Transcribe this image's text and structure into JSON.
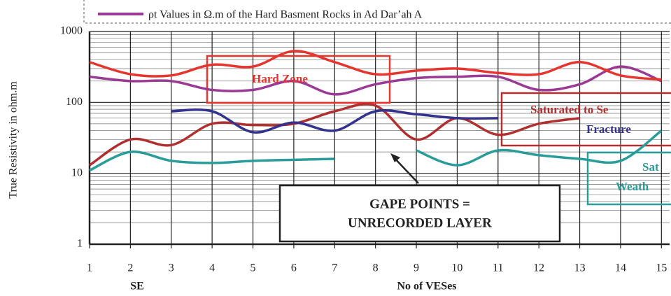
{
  "chart_data": {
    "type": "line",
    "log_y": true,
    "grid": true,
    "minor_grid": true,
    "y_label": "True Resistivity in ohm.m",
    "x_label": "No of VESes",
    "x_note": "SE",
    "x": [
      1,
      2,
      3,
      4,
      5,
      6,
      7,
      8,
      9,
      10,
      11,
      12,
      13,
      14,
      15
    ],
    "xlim": [
      1,
      15.2
    ],
    "xticks": [
      1,
      2,
      3,
      4,
      5,
      6,
      7,
      8,
      9,
      10,
      11,
      12,
      13,
      14,
      15
    ],
    "ylim": [
      1,
      1000
    ],
    "yticks": [
      1,
      10,
      100,
      1000
    ],
    "series": [
      {
        "name": "ρt Values in Ω.m of the Hard Basment Rocks in Ad Dar’ah A",
        "color": "#9b3a94",
        "values": [
          230,
          200,
          200,
          150,
          150,
          200,
          130,
          180,
          220,
          230,
          230,
          150,
          180,
          320,
          200
        ]
      },
      {
        "color": "#e5352e",
        "values": [
          370,
          250,
          240,
          340,
          320,
          530,
          370,
          250,
          280,
          300,
          260,
          250,
          370,
          240,
          210
        ]
      },
      {
        "color": "#b03030",
        "values": [
          13,
          30,
          25,
          50,
          48,
          50,
          75,
          90,
          30,
          60,
          35,
          50,
          60,
          null,
          null
        ]
      },
      {
        "color": "#33338f",
        "values": [
          null,
          null,
          75,
          75,
          38,
          52,
          40,
          75,
          68,
          60,
          60,
          null,
          null,
          null,
          null
        ]
      },
      {
        "color": "#2a9d9a",
        "values": [
          11,
          20,
          15,
          14,
          15,
          15.5,
          16,
          null,
          21,
          13,
          21,
          18,
          16,
          15,
          40
        ]
      }
    ],
    "annotations": [
      {
        "text": "Hard Zone",
        "color": "#e5352e"
      },
      {
        "text": "Saturated to Se",
        "color": "#b03030"
      },
      {
        "text": "Fracture",
        "color": "#33338f"
      },
      {
        "text": "Sat",
        "color": "#2a9d9a"
      },
      {
        "text": "Weath",
        "color": "#2a9d9a"
      },
      {
        "text": "GAPE POINTS =",
        "color": "#222"
      },
      {
        "text": "UNRECORDED LAYER",
        "color": "#222"
      }
    ]
  }
}
